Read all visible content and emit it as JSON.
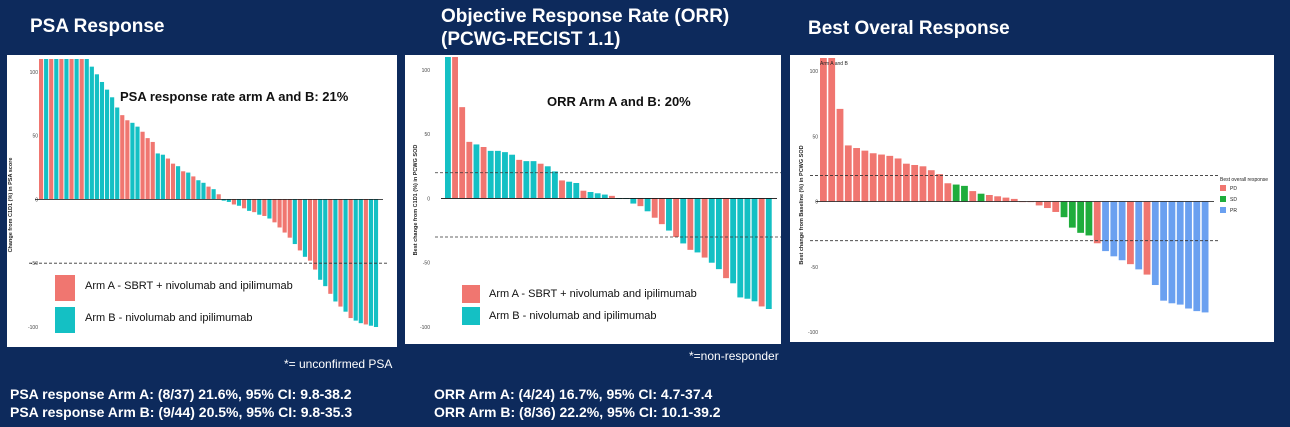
{
  "titles": {
    "psa": "PSA Response",
    "orr": "Objective Response Rate (ORR)\n(PCWG-RECIST 1.1)",
    "bor": "Best Overal Response"
  },
  "notes": {
    "psa": "*= unconfirmed PSA",
    "orr": "*=non-responder"
  },
  "stats": {
    "psa_a": "PSA response Arm A: (8/37) 21.6%, 95% CI: 9.8-38.2",
    "psa_b": "PSA response Arm B: (9/44) 20.5%, 95% CI: 9.8-35.3",
    "orr_a": "ORR Arm A: (4/24) 16.7%, 95% CI: 4.7-37.4",
    "orr_b": "ORR Arm B: (8/36) 22.2%, 95% CI: 10.1-39.2"
  },
  "colors": {
    "armA": "#f07670",
    "armB": "#14c0c4",
    "PD": "#f07670",
    "SD": "#1fad3c",
    "PR": "#6aa0f0"
  },
  "chart_data": [
    {
      "type": "bar",
      "title": "PSA Response",
      "ylabel": "Change from C1D1 (%) in PSA score",
      "ylim": [
        -100,
        110
      ],
      "yticks": [
        -100,
        -50,
        0,
        50,
        100
      ],
      "yticklabels": [
        "-100",
        "-50",
        "0",
        "50",
        "100"
      ],
      "reference_lines": [
        -50
      ],
      "annotation": "PSA response rate arm A and B: 21%",
      "legend": [
        {
          "label": "Arm A - SBRT + nivolumab and ipilimumab",
          "arm": "A"
        },
        {
          "label": "Arm B - nivolumab and ipilimumab",
          "arm": "B"
        }
      ],
      "bars": [
        {
          "v": 110,
          "a": "A"
        },
        {
          "v": 110,
          "a": "B"
        },
        {
          "v": 110,
          "a": "A"
        },
        {
          "v": 110,
          "a": "B"
        },
        {
          "v": 110,
          "a": "A"
        },
        {
          "v": 110,
          "a": "B"
        },
        {
          "v": 110,
          "a": "A"
        },
        {
          "v": 110,
          "a": "B"
        },
        {
          "v": 110,
          "a": "A"
        },
        {
          "v": 110,
          "a": "B"
        },
        {
          "v": 104,
          "a": "B"
        },
        {
          "v": 98,
          "a": "B"
        },
        {
          "v": 92,
          "a": "B"
        },
        {
          "v": 86,
          "a": "B"
        },
        {
          "v": 80,
          "a": "B"
        },
        {
          "v": 72,
          "a": "B"
        },
        {
          "v": 66,
          "a": "A"
        },
        {
          "v": 62,
          "a": "A"
        },
        {
          "v": 60,
          "a": "B"
        },
        {
          "v": 57,
          "a": "B"
        },
        {
          "v": 53,
          "a": "A"
        },
        {
          "v": 48,
          "a": "A"
        },
        {
          "v": 45,
          "a": "A"
        },
        {
          "v": 36,
          "a": "B"
        },
        {
          "v": 35,
          "a": "B"
        },
        {
          "v": 32,
          "a": "A"
        },
        {
          "v": 28,
          "a": "A"
        },
        {
          "v": 26,
          "a": "B"
        },
        {
          "v": 22,
          "a": "A"
        },
        {
          "v": 21,
          "a": "B"
        },
        {
          "v": 18,
          "a": "A"
        },
        {
          "v": 15,
          "a": "B"
        },
        {
          "v": 13,
          "a": "B"
        },
        {
          "v": 10,
          "a": "A"
        },
        {
          "v": 8,
          "a": "B"
        },
        {
          "v": 4,
          "a": "A"
        },
        {
          "v": -1,
          "a": "B"
        },
        {
          "v": -2,
          "a": "B"
        },
        {
          "v": -4,
          "a": "A"
        },
        {
          "v": -5,
          "a": "B"
        },
        {
          "v": -7,
          "a": "A"
        },
        {
          "v": -9,
          "a": "B"
        },
        {
          "v": -10,
          "a": "A"
        },
        {
          "v": -12,
          "a": "B"
        },
        {
          "v": -13,
          "a": "A"
        },
        {
          "v": -15,
          "a": "B"
        },
        {
          "v": -18,
          "a": "A"
        },
        {
          "v": -22,
          "a": "A"
        },
        {
          "v": -26,
          "a": "A"
        },
        {
          "v": -30,
          "a": "A"
        },
        {
          "v": -35,
          "a": "B"
        },
        {
          "v": -40,
          "a": "A"
        },
        {
          "v": -45,
          "a": "B"
        },
        {
          "v": -48,
          "a": "A"
        },
        {
          "v": -55,
          "a": "A"
        },
        {
          "v": -63,
          "a": "B"
        },
        {
          "v": -68,
          "a": "B"
        },
        {
          "v": -74,
          "a": "A"
        },
        {
          "v": -80,
          "a": "B"
        },
        {
          "v": -84,
          "a": "A"
        },
        {
          "v": -88,
          "a": "B"
        },
        {
          "v": -93,
          "a": "A"
        },
        {
          "v": -95,
          "a": "B"
        },
        {
          "v": -97,
          "a": "B"
        },
        {
          "v": -98,
          "a": "A"
        },
        {
          "v": -99,
          "a": "B"
        },
        {
          "v": -100,
          "a": "B"
        }
      ]
    },
    {
      "type": "bar",
      "title": "Objective Response Rate (ORR) (PCWG-RECIST 1.1)",
      "ylabel": "Best change from C1D1 (%) in PCWG SOD",
      "ylim": [
        -100,
        110
      ],
      "yticks": [
        -100,
        -50,
        0,
        50,
        100
      ],
      "yticklabels": [
        "-100",
        "-50",
        "0",
        "50",
        "100"
      ],
      "reference_lines": [
        20,
        -30
      ],
      "annotation": "ORR Arm A and B: 20%",
      "legend": [
        {
          "label": "Arm A - SBRT + nivolumab and ipilimumab",
          "arm": "A"
        },
        {
          "label": "Arm B - nivolumab and ipilimumab",
          "arm": "B"
        }
      ],
      "bars": [
        {
          "v": 110,
          "a": "B"
        },
        {
          "v": 110,
          "a": "A"
        },
        {
          "v": 71,
          "a": "A"
        },
        {
          "v": 44,
          "a": "A"
        },
        {
          "v": 42,
          "a": "B"
        },
        {
          "v": 40,
          "a": "A"
        },
        {
          "v": 37,
          "a": "B"
        },
        {
          "v": 37,
          "a": "B"
        },
        {
          "v": 36,
          "a": "B"
        },
        {
          "v": 34,
          "a": "B"
        },
        {
          "v": 30,
          "a": "A"
        },
        {
          "v": 29,
          "a": "B"
        },
        {
          "v": 29,
          "a": "B"
        },
        {
          "v": 27,
          "a": "A"
        },
        {
          "v": 25,
          "a": "B"
        },
        {
          "v": 21,
          "a": "B"
        },
        {
          "v": 14,
          "a": "A"
        },
        {
          "v": 13,
          "a": "B"
        },
        {
          "v": 12,
          "a": "B"
        },
        {
          "v": 6,
          "a": "A"
        },
        {
          "v": 5,
          "a": "B"
        },
        {
          "v": 4,
          "a": "B"
        },
        {
          "v": 3,
          "a": "B"
        },
        {
          "v": 2,
          "a": "A"
        },
        {
          "v": 0,
          "a": "B"
        },
        {
          "v": 0,
          "a": "B"
        },
        {
          "v": -4,
          "a": "B"
        },
        {
          "v": -6,
          "a": "A"
        },
        {
          "v": -10,
          "a": "B"
        },
        {
          "v": -15,
          "a": "A"
        },
        {
          "v": -20,
          "a": "A"
        },
        {
          "v": -25,
          "a": "B"
        },
        {
          "v": -30,
          "a": "A"
        },
        {
          "v": -35,
          "a": "B"
        },
        {
          "v": -40,
          "a": "A"
        },
        {
          "v": -42,
          "a": "B"
        },
        {
          "v": -46,
          "a": "A"
        },
        {
          "v": -50,
          "a": "B"
        },
        {
          "v": -55,
          "a": "B"
        },
        {
          "v": -62,
          "a": "A"
        },
        {
          "v": -66,
          "a": "B"
        },
        {
          "v": -77,
          "a": "B"
        },
        {
          "v": -78,
          "a": "B"
        },
        {
          "v": -80,
          "a": "B"
        },
        {
          "v": -84,
          "a": "A"
        },
        {
          "v": -86,
          "a": "B"
        }
      ]
    },
    {
      "type": "bar",
      "title": "Best Overal Response",
      "subtitle": "Arm A and B",
      "ylabel": "Best change from Baseline (%) in PCWG SOD",
      "ylim": [
        -100,
        110
      ],
      "yticks": [
        -100,
        -50,
        0,
        50,
        100
      ],
      "yticklabels": [
        "-100",
        "-50",
        "0",
        "50",
        "100"
      ],
      "reference_lines": [
        20,
        -30
      ],
      "legend_title": "Best overall response",
      "legend": [
        {
          "label": "PD",
          "cat": "PD"
        },
        {
          "label": "SD",
          "cat": "SD"
        },
        {
          "label": "PR",
          "cat": "PR"
        }
      ],
      "bars": [
        {
          "v": 110,
          "c": "PD"
        },
        {
          "v": 110,
          "c": "PD"
        },
        {
          "v": 71,
          "c": "PD"
        },
        {
          "v": 43,
          "c": "PD"
        },
        {
          "v": 41,
          "c": "PD"
        },
        {
          "v": 39,
          "c": "PD"
        },
        {
          "v": 37,
          "c": "PD"
        },
        {
          "v": 36,
          "c": "PD"
        },
        {
          "v": 35,
          "c": "PD"
        },
        {
          "v": 33,
          "c": "PD"
        },
        {
          "v": 29,
          "c": "PD"
        },
        {
          "v": 28,
          "c": "PD"
        },
        {
          "v": 27,
          "c": "PD"
        },
        {
          "v": 24,
          "c": "PD"
        },
        {
          "v": 21,
          "c": "PD"
        },
        {
          "v": 14,
          "c": "PD"
        },
        {
          "v": 13,
          "c": "SD"
        },
        {
          "v": 12,
          "c": "SD"
        },
        {
          "v": 8,
          "c": "PD"
        },
        {
          "v": 6,
          "c": "SD"
        },
        {
          "v": 5,
          "c": "PD"
        },
        {
          "v": 4,
          "c": "PD"
        },
        {
          "v": 3,
          "c": "PD"
        },
        {
          "v": 2,
          "c": "PD"
        },
        {
          "v": 0,
          "c": "PD"
        },
        {
          "v": 0,
          "c": "PD"
        },
        {
          "v": -3,
          "c": "PD"
        },
        {
          "v": -5,
          "c": "PD"
        },
        {
          "v": -8,
          "c": "PD"
        },
        {
          "v": -12,
          "c": "SD"
        },
        {
          "v": -20,
          "c": "SD"
        },
        {
          "v": -24,
          "c": "SD"
        },
        {
          "v": -26,
          "c": "SD"
        },
        {
          "v": -32,
          "c": "PD"
        },
        {
          "v": -38,
          "c": "PR"
        },
        {
          "v": -42,
          "c": "PR"
        },
        {
          "v": -45,
          "c": "PR"
        },
        {
          "v": -48,
          "c": "PD"
        },
        {
          "v": -52,
          "c": "PR"
        },
        {
          "v": -56,
          "c": "PD"
        },
        {
          "v": -64,
          "c": "PR"
        },
        {
          "v": -76,
          "c": "PR"
        },
        {
          "v": -78,
          "c": "PR"
        },
        {
          "v": -79,
          "c": "PR"
        },
        {
          "v": -82,
          "c": "PR"
        },
        {
          "v": -84,
          "c": "PR"
        },
        {
          "v": -85,
          "c": "PR"
        }
      ]
    }
  ]
}
